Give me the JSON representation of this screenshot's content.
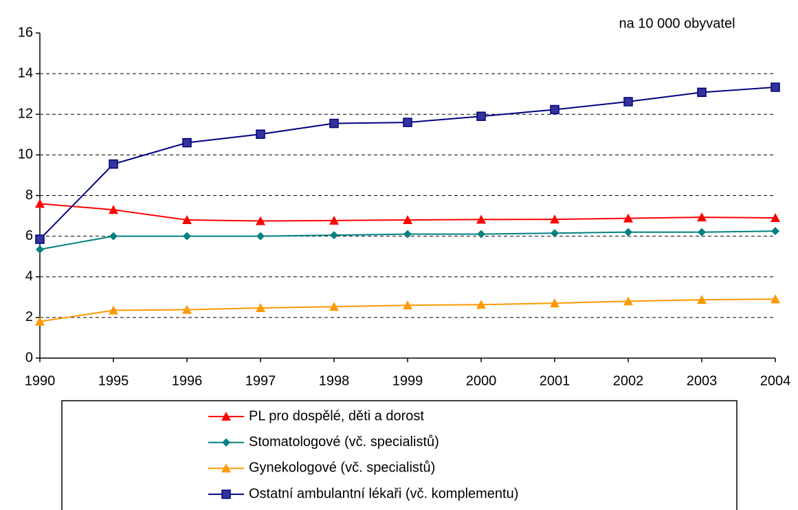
{
  "chart_data": {
    "type": "line",
    "annotation": "na 10 000 obyvatel",
    "categories": [
      "1990",
      "1995",
      "1996",
      "1997",
      "1998",
      "1999",
      "2000",
      "2001",
      "2002",
      "2003",
      "2004"
    ],
    "series": [
      {
        "name": "PL pro dospělé, děti a dorost",
        "color": "#ff0000",
        "marker": "triangle",
        "values": [
          7.6,
          7.3,
          6.8,
          6.75,
          6.77,
          6.8,
          6.82,
          6.83,
          6.88,
          6.93,
          6.9
        ]
      },
      {
        "name": "Stomatologové (vč. specialistů)",
        "color": "#008080",
        "marker": "diamond",
        "values": [
          5.35,
          6.0,
          6.0,
          6.0,
          6.05,
          6.1,
          6.1,
          6.15,
          6.2,
          6.2,
          6.25
        ]
      },
      {
        "name": "Gynekologové (vč. specialistů)",
        "color": "#ff9900",
        "marker": "triangle",
        "values": [
          1.8,
          2.35,
          2.38,
          2.47,
          2.53,
          2.6,
          2.63,
          2.7,
          2.8,
          2.87,
          2.9
        ]
      },
      {
        "name": "Ostatní ambulantní lékaři (vč. komplementu)",
        "color": "#000080",
        "marker": "square",
        "values": [
          5.85,
          9.55,
          10.6,
          11.02,
          11.55,
          11.6,
          11.9,
          12.23,
          12.62,
          13.08,
          13.33
        ]
      }
    ],
    "ylim": [
      0,
      16
    ],
    "yticks": [
      0,
      2,
      4,
      6,
      8,
      10,
      12,
      14,
      16
    ],
    "grid": true
  }
}
